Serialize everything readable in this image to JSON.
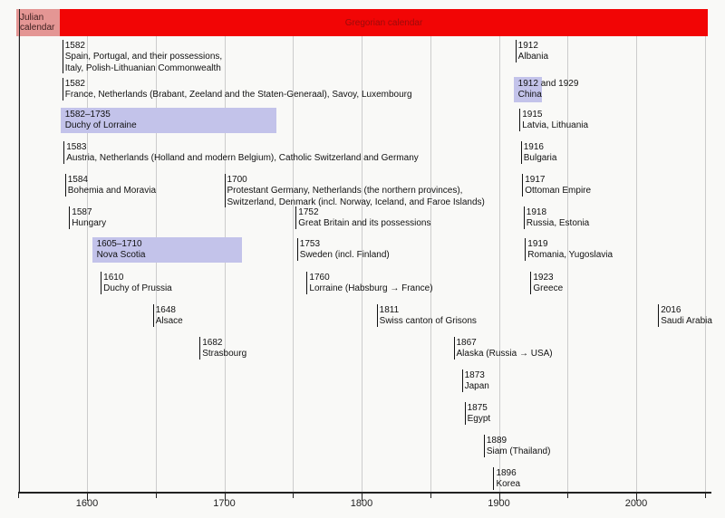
{
  "header": {
    "julian_label": "Julian calendar",
    "gregorian_label": "Gregorian calendar"
  },
  "colors": {
    "background": "#f9f9f7",
    "gregorian_bar": "#f20505",
    "gregorian_text": "#9b0b0b",
    "julian_box": "#e49694",
    "range_highlight": "#c3c3ea",
    "gridline": "#cccccc",
    "text": "#111111"
  },
  "chart_data": {
    "type": "timeline",
    "title": "",
    "x_axis": {
      "range": [
        1550,
        2055
      ],
      "ticks_labeled": [
        1600,
        1700,
        1800,
        1900,
        2000
      ],
      "ticks_minor": [
        1550,
        1650,
        1750,
        1850,
        1950,
        2050
      ],
      "grid": true
    },
    "bands": [
      {
        "label": "Julian calendar",
        "from": 1550,
        "to": 1582
      },
      {
        "label": "Gregorian calendar",
        "from": 1582,
        "to": 2055
      }
    ],
    "events": [
      {
        "year_label": "1582",
        "year": 1582,
        "row": 0,
        "names": [
          "Spain, Portugal, and their possessions,",
          "Italy, Polish-Lithuanian Commonwealth"
        ]
      },
      {
        "year_label": "1582",
        "year": 1582,
        "row": 1,
        "names": [
          "France, Netherlands (Brabant, Zeeland and the Staten-Generaal), Savoy, Luxembourg"
        ]
      },
      {
        "year_label": "1582–1735",
        "year": 1582,
        "year_end": 1735,
        "highlight": true,
        "row": 2,
        "names": [
          "Duchy of Lorraine"
        ]
      },
      {
        "year_label": "1583",
        "year": 1583,
        "row": 3,
        "names": [
          "Austria, Netherlands (Holland and modern Belgium), Catholic Switzerland and Germany"
        ]
      },
      {
        "year_label": "1584",
        "year": 1584,
        "row": 4,
        "names": [
          "Bohemia and Moravia"
        ]
      },
      {
        "year_label": "1587",
        "year": 1587,
        "row": 5,
        "names": [
          "Hungary"
        ]
      },
      {
        "year_label": "1605–1710",
        "year": 1605,
        "year_end": 1710,
        "highlight": true,
        "row": 6,
        "names": [
          "Nova Scotia"
        ]
      },
      {
        "year_label": "1610",
        "year": 1610,
        "row": 7,
        "names": [
          "Duchy of Prussia"
        ]
      },
      {
        "year_label": "1648",
        "year": 1648,
        "row": 8,
        "names": [
          "Alsace"
        ]
      },
      {
        "year_label": "1682",
        "year": 1682,
        "row": 9,
        "names": [
          "Strasbourg"
        ]
      },
      {
        "year_label": "1700",
        "year": 1700,
        "row": 4,
        "names": [
          "Protestant Germany, Netherlands (the northern provinces),",
          "Switzerland, Denmark (incl. Norway, Iceland, and Faroe Islands)"
        ]
      },
      {
        "year_label": "1752",
        "year": 1752,
        "row": 5,
        "names": [
          "Great Britain and its possessions"
        ]
      },
      {
        "year_label": "1753",
        "year": 1753,
        "row": 6,
        "names": [
          "Sweden (incl. Finland)"
        ]
      },
      {
        "year_label": "1760",
        "year": 1760,
        "row": 7,
        "names": [
          "Lorraine (Habsburg → France)"
        ]
      },
      {
        "year_label": "1811",
        "year": 1811,
        "row": 8,
        "names": [
          "Swiss canton of Grisons"
        ]
      },
      {
        "year_label": "1867",
        "year": 1867,
        "row": 9,
        "names": [
          "Alaska (Russia → USA)"
        ]
      },
      {
        "year_label": "1873",
        "year": 1873,
        "row": 10,
        "names": [
          "Japan"
        ]
      },
      {
        "year_label": "1875",
        "year": 1875,
        "row": 11,
        "names": [
          "Egypt"
        ]
      },
      {
        "year_label": "1889",
        "year": 1889,
        "row": 12,
        "names": [
          "Siam (Thailand)"
        ]
      },
      {
        "year_label": "1896",
        "year": 1896,
        "row": 13,
        "names": [
          "Korea"
        ]
      },
      {
        "year_label": "1912",
        "year": 1912,
        "row": 0,
        "names": [
          "Albania"
        ]
      },
      {
        "year_label": "1912 and 1929",
        "year": 1912,
        "year_end": 1929,
        "highlight": true,
        "row": 1,
        "names": [
          "China"
        ]
      },
      {
        "year_label": "1915",
        "year": 1915,
        "row": 2,
        "names": [
          "Latvia, Lithuania"
        ]
      },
      {
        "year_label": "1916",
        "year": 1916,
        "row": 3,
        "names": [
          "Bulgaria"
        ]
      },
      {
        "year_label": "1917",
        "year": 1917,
        "row": 4,
        "names": [
          "Ottoman Empire"
        ]
      },
      {
        "year_label": "1918",
        "year": 1918,
        "row": 5,
        "names": [
          "Russia, Estonia"
        ]
      },
      {
        "year_label": "1919",
        "year": 1919,
        "row": 6,
        "names": [
          "Romania, Yugoslavia"
        ]
      },
      {
        "year_label": "1923",
        "year": 1923,
        "row": 7,
        "names": [
          "Greece"
        ]
      },
      {
        "year_label": "2016",
        "year": 2016,
        "row": 8,
        "names": [
          "Saudi Arabia"
        ]
      }
    ]
  }
}
